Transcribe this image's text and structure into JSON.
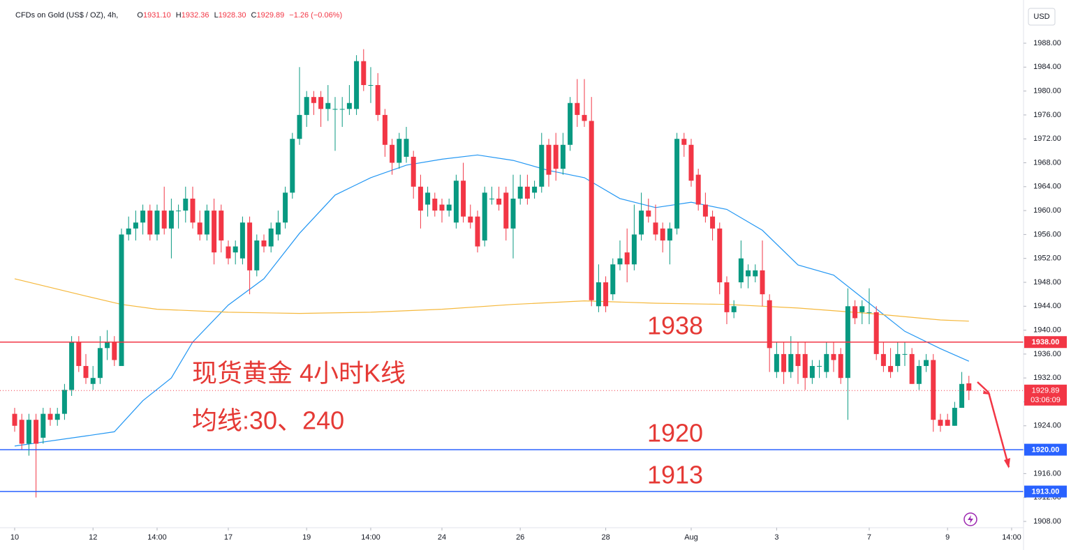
{
  "chart_data": {
    "type": "candlestick",
    "header": {
      "symbol": "CFDs on Gold (US$ / OZ), 4h,",
      "fields": [
        [
          "O",
          "1931.10"
        ],
        [
          "H",
          "1932.36"
        ],
        [
          "L",
          "1928.30"
        ],
        [
          "C",
          "1929.89"
        ]
      ],
      "change": "−1.26 (−0.06%)"
    },
    "currency": "USD",
    "annotations": [
      "现货黄金 4小时K线",
      "均线:30、240"
    ],
    "up_color": "#089981",
    "down_color": "#f23645",
    "xlim": [
      -2.06,
      141.67
    ],
    "ylim": [
      1906.25,
      1995.23
    ],
    "xticks": [
      {
        "value": 0,
        "label": "10"
      },
      {
        "value": 11,
        "label": "12"
      },
      {
        "value": 20,
        "label": "14:00"
      },
      {
        "value": 30,
        "label": "17"
      },
      {
        "value": 41,
        "label": "19"
      },
      {
        "value": 50,
        "label": "14:00"
      },
      {
        "value": 60,
        "label": "24"
      },
      {
        "value": 71,
        "label": "26"
      },
      {
        "value": 83,
        "label": "28"
      },
      {
        "value": 95,
        "label": "Aug"
      },
      {
        "value": 107,
        "label": "3"
      },
      {
        "value": 120,
        "label": "7"
      },
      {
        "value": 131,
        "label": "9"
      },
      {
        "value": 140,
        "label": "14:00"
      }
    ],
    "yticks": [
      {
        "value": 1908,
        "label": "1908.00"
      },
      {
        "value": 1912,
        "label": "1912.00"
      },
      {
        "value": 1916,
        "label": "1916.00"
      },
      {
        "value": 1920,
        "label": "1920.00"
      },
      {
        "value": 1924,
        "label": "1924.00"
      },
      {
        "value": 1928,
        "label": "1928.00"
      },
      {
        "value": 1932,
        "label": "1932.00"
      },
      {
        "value": 1936,
        "label": "1936.00"
      },
      {
        "value": 1940,
        "label": "1940.00"
      },
      {
        "value": 1944,
        "label": "1944.00"
      },
      {
        "value": 1948,
        "label": "1948.00"
      },
      {
        "value": 1952,
        "label": "1952.00"
      },
      {
        "value": 1956,
        "label": "1956.00"
      },
      {
        "value": 1960,
        "label": "1960.00"
      },
      {
        "value": 1964,
        "label": "1964.00"
      },
      {
        "value": 1968,
        "label": "1968.00"
      },
      {
        "value": 1972,
        "label": "1972.00"
      },
      {
        "value": 1976,
        "label": "1976.00"
      },
      {
        "value": 1980,
        "label": "1980.00"
      },
      {
        "value": 1984,
        "label": "1984.00"
      },
      {
        "value": 1988,
        "label": "1988.00"
      }
    ],
    "ohlc": [
      [
        1926,
        1927,
        1923,
        1924
      ],
      [
        1925,
        1926,
        1920,
        1921
      ],
      [
        1921,
        1926,
        1919,
        1925
      ],
      [
        1925,
        1926,
        1912,
        1921
      ],
      [
        1922,
        1927,
        1921,
        1926
      ],
      [
        1926,
        1927,
        1924,
        1925
      ],
      [
        1925,
        1927,
        1924,
        1926
      ],
      [
        1926,
        1931,
        1925,
        1930
      ],
      [
        1930,
        1939,
        1929,
        1938
      ],
      [
        1938,
        1939,
        1933,
        1934
      ],
      [
        1934,
        1936,
        1931,
        1932
      ],
      [
        1931,
        1934,
        1930,
        1932
      ],
      [
        1932,
        1939,
        1931,
        1937
      ],
      [
        1937,
        1940,
        1935,
        1938
      ],
      [
        1938,
        1939,
        1934,
        1935
      ],
      [
        1934,
        1957,
        1934,
        1956
      ],
      [
        1956,
        1959,
        1955,
        1957
      ],
      [
        1957,
        1960,
        1955,
        1958
      ],
      [
        1958,
        1961,
        1956,
        1960
      ],
      [
        1960,
        1961,
        1955,
        1956
      ],
      [
        1956,
        1961,
        1955,
        1960
      ],
      [
        1960,
        1964,
        1956,
        1957
      ],
      [
        1957,
        1962,
        1952,
        1960
      ],
      [
        1960,
        1961,
        1957,
        1960
      ],
      [
        1960,
        1964,
        1958,
        1962
      ],
      [
        1962,
        1964,
        1957,
        1958
      ],
      [
        1958,
        1960,
        1955,
        1956
      ],
      [
        1956,
        1961,
        1955,
        1960
      ],
      [
        1960,
        1962,
        1951,
        1953
      ],
      [
        1960,
        1961,
        1953,
        1955
      ],
      [
        1954,
        1955,
        1951,
        1952
      ],
      [
        1953,
        1955,
        1951,
        1954
      ],
      [
        1952,
        1959,
        1951,
        1958
      ],
      [
        1958,
        1959,
        1946,
        1950
      ],
      [
        1950,
        1956,
        1949,
        1955
      ],
      [
        1955,
        1956,
        1953,
        1954
      ],
      [
        1954,
        1958,
        1953,
        1957
      ],
      [
        1956,
        1960,
        1955,
        1958
      ],
      [
        1958,
        1964,
        1957,
        1963
      ],
      [
        1963,
        1973,
        1962,
        1972
      ],
      [
        1972,
        1984,
        1971,
        1976
      ],
      [
        1976,
        1980,
        1974,
        1979
      ],
      [
        1979,
        1980,
        1976,
        1978
      ],
      [
        1979,
        1980,
        1974,
        1977
      ],
      [
        1977,
        1981,
        1975,
        1978
      ],
      [
        1977,
        1979,
        1970,
        1977
      ],
      [
        1977,
        1979,
        1974,
        1977
      ],
      [
        1977,
        1981,
        1976,
        1978
      ],
      [
        1977,
        1986,
        1976,
        1985
      ],
      [
        1985,
        1987,
        1980,
        1981
      ],
      [
        1981,
        1984,
        1978,
        1981
      ],
      [
        1981,
        1983,
        1975,
        1976
      ],
      [
        1976,
        1977,
        1969,
        1971
      ],
      [
        1971,
        1972,
        1966,
        1968
      ],
      [
        1968,
        1973,
        1967,
        1972
      ],
      [
        1969,
        1974,
        1968,
        1972
      ],
      [
        1969,
        1970,
        1962,
        1964
      ],
      [
        1964,
        1966,
        1957,
        1960
      ],
      [
        1961,
        1964,
        1959,
        1963
      ],
      [
        1962,
        1963,
        1959,
        1960
      ],
      [
        1961,
        1962,
        1958,
        1960
      ],
      [
        1960,
        1962,
        1959,
        1961
      ],
      [
        1958,
        1966,
        1957,
        1965
      ],
      [
        1965,
        1968,
        1958,
        1959
      ],
      [
        1959,
        1961,
        1957,
        1958
      ],
      [
        1959,
        1960,
        1953,
        1954
      ],
      [
        1955,
        1964,
        1954,
        1963
      ],
      [
        1962,
        1964,
        1961,
        1962
      ],
      [
        1962,
        1964,
        1960,
        1961
      ],
      [
        1963,
        1964,
        1955,
        1957
      ],
      [
        1957,
        1966,
        1952,
        1962
      ],
      [
        1962,
        1966,
        1961,
        1964
      ],
      [
        1964,
        1966,
        1961,
        1962
      ],
      [
        1963,
        1965,
        1962,
        1964
      ],
      [
        1964,
        1973,
        1963,
        1971
      ],
      [
        1971,
        1972,
        1964,
        1966
      ],
      [
        1971,
        1973,
        1965,
        1967
      ],
      [
        1967,
        1973,
        1966,
        1971
      ],
      [
        1971,
        1979,
        1970,
        1978
      ],
      [
        1978,
        1982,
        1974,
        1976
      ],
      [
        1976,
        1982,
        1974,
        1975
      ],
      [
        1975,
        1979,
        1944,
        1945
      ],
      [
        1944,
        1951,
        1943,
        1948
      ],
      [
        1948,
        1949,
        1943,
        1944
      ],
      [
        1946,
        1952,
        1945,
        1951
      ],
      [
        1951,
        1955,
        1950,
        1952
      ],
      [
        1953,
        1957,
        1948,
        1951
      ],
      [
        1951,
        1961,
        1950,
        1956
      ],
      [
        1956,
        1963,
        1955,
        1960
      ],
      [
        1960,
        1962,
        1958,
        1959
      ],
      [
        1958,
        1961,
        1955,
        1956
      ],
      [
        1957,
        1958,
        1953,
        1955
      ],
      [
        1955,
        1958,
        1951,
        1957
      ],
      [
        1957,
        1973,
        1956,
        1972
      ],
      [
        1972,
        1973,
        1969,
        1971
      ],
      [
        1971,
        1972,
        1964,
        1965
      ],
      [
        1966,
        1967,
        1960,
        1961
      ],
      [
        1961,
        1963,
        1958,
        1959
      ],
      [
        1959,
        1960,
        1955,
        1957
      ],
      [
        1957,
        1958,
        1946,
        1948
      ],
      [
        1948,
        1949,
        1941,
        1943
      ],
      [
        1943,
        1945,
        1942,
        1944
      ],
      [
        1948,
        1955,
        1947,
        1952
      ],
      [
        1949,
        1951,
        1947,
        1950
      ],
      [
        1949,
        1951,
        1948,
        1950
      ],
      [
        1950,
        1955,
        1944,
        1946
      ],
      [
        1945,
        1946,
        1933,
        1937
      ],
      [
        1933,
        1938,
        1932,
        1936
      ],
      [
        1936,
        1938,
        1931,
        1933
      ],
      [
        1933,
        1939,
        1932,
        1936
      ],
      [
        1936,
        1938,
        1931,
        1934
      ],
      [
        1936,
        1938,
        1930,
        1932
      ],
      [
        1932,
        1935,
        1931,
        1934
      ],
      [
        1934,
        1935,
        1932,
        1934
      ],
      [
        1933,
        1938,
        1932,
        1936
      ],
      [
        1936,
        1938,
        1933,
        1935
      ],
      [
        1936,
        1937,
        1931,
        1932
      ],
      [
        1932,
        1947,
        1925,
        1944
      ],
      [
        1944,
        1945,
        1941,
        1942
      ],
      [
        1943,
        1945,
        1941,
        1944
      ],
      [
        1943,
        1947,
        1941,
        1943
      ],
      [
        1943,
        1944,
        1935,
        1936
      ],
      [
        1936,
        1938,
        1933,
        1934
      ],
      [
        1934,
        1937,
        1932,
        1933
      ],
      [
        1934,
        1938,
        1933,
        1936
      ],
      [
        1936,
        1938,
        1934,
        1936
      ],
      [
        1936,
        1937,
        1931,
        1931
      ],
      [
        1931,
        1935,
        1930,
        1934
      ],
      [
        1934,
        1936,
        1933,
        1935
      ],
      [
        1935,
        1936,
        1923,
        1925
      ],
      [
        1925,
        1926,
        1923,
        1924
      ],
      [
        1925,
        1926,
        1924,
        1924
      ],
      [
        1924,
        1928,
        1924,
        1927
      ],
      [
        1927,
        1933,
        1927,
        1931
      ],
      [
        1931.1,
        1932.36,
        1928.3,
        1929.89
      ]
    ],
    "series": [
      {
        "name": "30",
        "color": "#2196f3",
        "x": [
          0,
          10,
          14,
          18,
          22,
          25,
          30,
          35,
          40,
          45,
          50,
          55,
          60,
          65,
          70,
          75,
          80,
          85,
          90,
          95,
          100,
          105,
          110,
          115,
          120,
          125,
          130,
          134
        ],
        "values": [
          1920.6,
          1922.3,
          1923,
          1928.2,
          1932,
          1938,
          1944.2,
          1948.6,
          1956.2,
          1962.6,
          1965.5,
          1967.6,
          1968.6,
          1969.3,
          1968.4,
          1966.7,
          1965.5,
          1962,
          1960.5,
          1961.4,
          1960.2,
          1956.7,
          1950.9,
          1949.2,
          1944.5,
          1939.8,
          1936.9,
          1934.8
        ]
      },
      {
        "name": "240",
        "color": "#f5b83c",
        "x": [
          0,
          10,
          15,
          20,
          30,
          40,
          50,
          60,
          70,
          80,
          90,
          100,
          110,
          120,
          130,
          134
        ],
        "values": [
          1948.6,
          1945.7,
          1944.3,
          1943.5,
          1943,
          1942.8,
          1943,
          1943.5,
          1944.3,
          1944.9,
          1944.5,
          1944.3,
          1943.7,
          1942.8,
          1941.7,
          1941.5
        ]
      }
    ],
    "levels": [
      {
        "value": 1938,
        "color": "#f23645",
        "label": "1938",
        "tag": "1938.00"
      },
      {
        "value": 1920,
        "color": "#2962ff",
        "label": "1920",
        "tag": "1920.00"
      },
      {
        "value": 1913,
        "color": "#2962ff",
        "label": "1913",
        "tag": "1913.00"
      }
    ],
    "last_price": 1929.89,
    "countdown": "03:06:09"
  }
}
